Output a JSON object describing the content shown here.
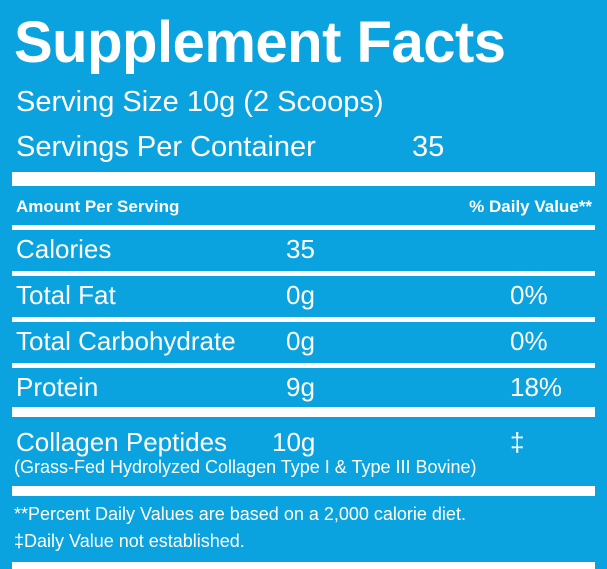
{
  "title": "Supplement Facts",
  "serving_size": "Serving Size 10g (2 Scoops)",
  "servings_per_container": {
    "label": "Servings Per Container",
    "value": "35"
  },
  "header": {
    "amount": "Amount Per Serving",
    "daily_value": "% Daily Value**"
  },
  "rows": [
    {
      "name": "Calories",
      "amount": "35"
    },
    {
      "name": "Total Fat",
      "amount": "0g",
      "dv": "0%"
    },
    {
      "name": "Total Carbohydrate",
      "amount": "0g",
      "dv": "0%"
    },
    {
      "name": "Protein",
      "amount": "9g",
      "dv": "18%"
    }
  ],
  "ingredient": {
    "name": "Collagen Peptides",
    "amount": "10g",
    "dv": "‡",
    "description": "(Grass-Fed Hydrolyzed Collagen Type I & Type III Bovine)"
  },
  "footnotes": [
    "**Percent Daily Values are based on a 2,000 calorie diet.",
    "‡Daily Value not established."
  ]
}
